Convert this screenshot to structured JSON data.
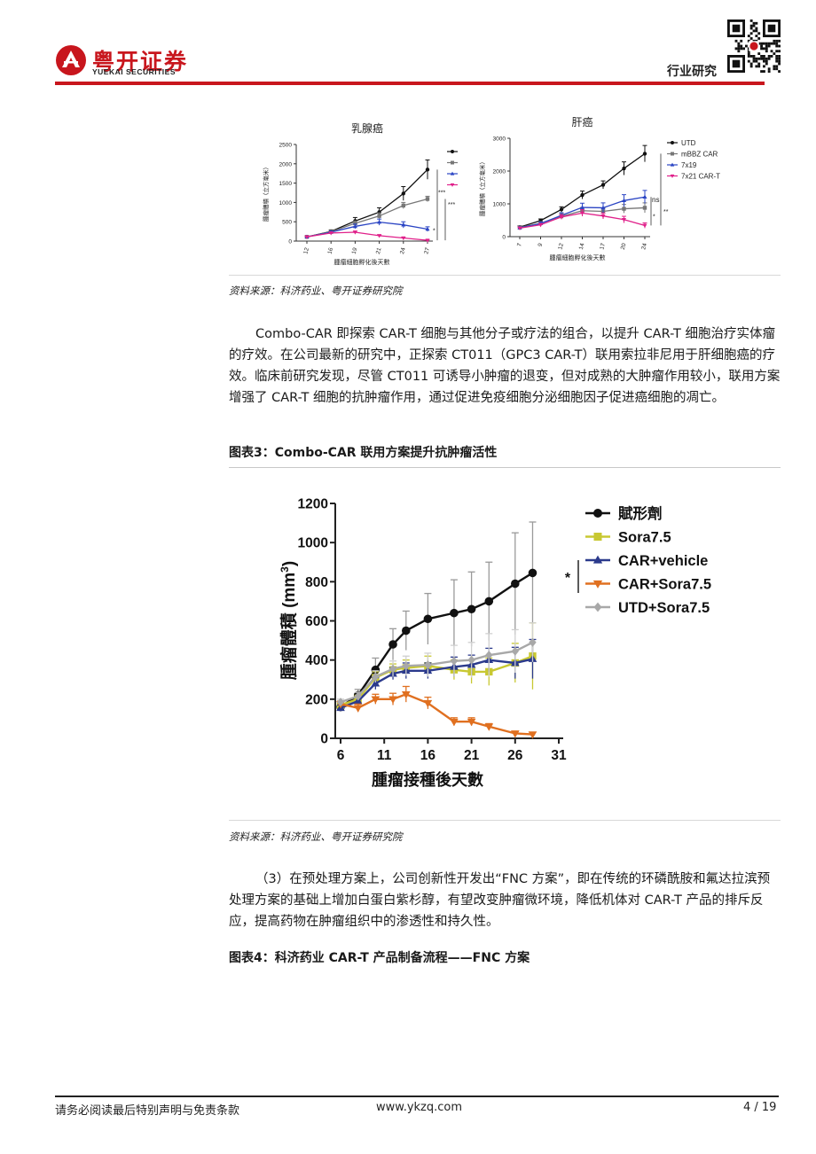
{
  "header": {
    "brand_cn": "粤开证券",
    "brand_en": "YUEKAI SECURITIES",
    "section": "行业研究",
    "accent_color": "#c8161d"
  },
  "figure2": {
    "left_panel": {
      "title": "乳腺癌",
      "ylabel": "腫瘤體積（立方毫米）",
      "xlabel": "腫瘤細胞孵化後天數",
      "sig_labels": [
        "***",
        "*",
        "***"
      ]
    },
    "right_panel": {
      "title": "肝癌",
      "ylabel": "腫瘤體積（立方毫米）",
      "xlabel": "腫瘤細胞孵化後天數",
      "legend": [
        "UTD",
        "mBBZ CAR",
        "7x19",
        "7x21 CAR-T"
      ],
      "sig_labels": [
        "ns",
        "*",
        "**"
      ]
    },
    "source": "资料来源：科济药业、粤开证券研究院"
  },
  "paragraph1": "Combo-CAR 即探索 CAR-T 细胞与其他分子或疗法的组合，以提升 CAR-T 细胞治疗实体瘤的疗效。在公司最新的研究中，正探索 CT011（GPC3 CAR-T）联用索拉非尼用于肝细胞癌的疗效。临床前研究发现，尽管 CT011 可诱导小肿瘤的退变，但对成熟的大肿瘤作用较小，联用方案增强了 CAR-T 细胞的抗肿瘤作用，通过促进免疫细胞分泌细胞因子促进癌细胞的凋亡。",
  "figure3": {
    "title": "图表3：Combo-CAR 联用方案提升抗肿瘤活性",
    "source": "资料来源：科济药业、粤开证券研究院",
    "sig_label": "*"
  },
  "paragraph2": "（3）在预处理方案上，公司创新性开发出“FNC 方案”，即在传统的环磷酰胺和氟达拉滨预处理方案的基础上增加白蛋白紫杉醇，有望改变肿瘤微环境，降低机体对 CAR-T 产品的排斥反应，提高药物在肿瘤组织中的渗透性和持久性。",
  "figure4": {
    "title": "图表4：科济药业 CAR-T 产品制备流程——FNC 方案"
  },
  "footer": {
    "disclaimer": "请务必阅读最后特别声明与免责条款",
    "website": "www.ykzq.com",
    "page": "4 / 19"
  },
  "chart_data": [
    {
      "type": "line",
      "title": "乳腺癌",
      "xlabel": "腫瘤細胞孵化後天數",
      "ylabel": "腫瘤體積（立方毫米）",
      "x": [
        12,
        16,
        19,
        21,
        24,
        27
      ],
      "ylim": [
        0,
        2500
      ],
      "yticks": [
        0,
        500,
        1000,
        1500,
        2000,
        2500
      ],
      "series": [
        {
          "name": "UTD",
          "color": "#111111",
          "marker": "circle",
          "values": [
            110,
            250,
            520,
            750,
            1230,
            1850
          ],
          "errors": [
            20,
            40,
            90,
            110,
            180,
            250
          ]
        },
        {
          "name": "mBBZ CAR",
          "color": "#777777",
          "marker": "square",
          "values": [
            110,
            240,
            460,
            650,
            920,
            1090
          ],
          "errors": [
            20,
            30,
            60,
            80,
            80,
            70
          ]
        },
        {
          "name": "7x19",
          "color": "#2b45c4",
          "marker": "triangle",
          "values": [
            110,
            230,
            380,
            490,
            420,
            310
          ],
          "errors": [
            20,
            30,
            60,
            80,
            80,
            60
          ]
        },
        {
          "name": "7x21 CAR-T",
          "color": "#e0208a",
          "marker": "triangle-down",
          "values": [
            110,
            210,
            230,
            140,
            80,
            20
          ],
          "errors": [
            15,
            20,
            30,
            20,
            15,
            10
          ]
        }
      ]
    },
    {
      "type": "line",
      "title": "肝癌",
      "xlabel": "腫瘤細胞孵化後天數",
      "ylabel": "腫瘤體積（立方毫米）",
      "x": [
        7,
        9,
        12,
        14,
        17,
        20,
        24
      ],
      "ylim": [
        0,
        3000
      ],
      "yticks": [
        0,
        1000,
        2000,
        3000
      ],
      "series": [
        {
          "name": "UTD",
          "color": "#111111",
          "marker": "circle",
          "values": [
            290,
            490,
            830,
            1270,
            1580,
            2080,
            2530
          ],
          "errors": [
            40,
            50,
            80,
            120,
            120,
            200,
            250
          ]
        },
        {
          "name": "mBBZ CAR",
          "color": "#777777",
          "marker": "square",
          "values": [
            280,
            410,
            620,
            790,
            770,
            850,
            880
          ],
          "errors": [
            30,
            50,
            80,
            100,
            100,
            130,
            150
          ]
        },
        {
          "name": "7x19",
          "color": "#2b45c4",
          "marker": "triangle",
          "values": [
            270,
            400,
            650,
            890,
            880,
            1100,
            1210
          ],
          "errors": [
            30,
            50,
            80,
            130,
            150,
            180,
            200
          ]
        },
        {
          "name": "7x21 CAR-T",
          "color": "#e0208a",
          "marker": "triangle-down",
          "values": [
            260,
            360,
            600,
            720,
            630,
            520,
            340
          ],
          "errors": [
            30,
            40,
            70,
            100,
            90,
            100,
            80
          ]
        }
      ]
    },
    {
      "type": "line",
      "title": "图表3：Combo-CAR 联用方案提升抗肿瘤活性",
      "xlabel": "腫瘤接種後天數",
      "ylabel": "腫瘤體積 (mm3)",
      "ylabel_main": "腫瘤體積 (mm",
      "ylabel_sup": "3",
      "ylabel_close": ")",
      "xlim": [
        6,
        31
      ],
      "xticks": [
        6,
        11,
        16,
        21,
        26,
        31
      ],
      "ylim": [
        0,
        1200
      ],
      "yticks": [
        0,
        200,
        400,
        600,
        800,
        1000,
        1200
      ],
      "x": [
        6,
        8,
        10,
        12,
        13.5,
        16,
        19,
        21,
        23,
        26,
        28
      ],
      "legend_position": "top-right",
      "series": [
        {
          "name": "賦形劑",
          "color": "#111111",
          "marker": "circle",
          "values": [
            160,
            220,
            350,
            480,
            550,
            610,
            640,
            660,
            700,
            790,
            845
          ],
          "errors": [
            20,
            30,
            60,
            80,
            100,
            130,
            170,
            190,
            200,
            260,
            260
          ]
        },
        {
          "name": "Sora7.5",
          "color": "#c8c832",
          "marker": "square",
          "values": [
            170,
            200,
            310,
            350,
            360,
            370,
            350,
            340,
            340,
            385,
            420
          ],
          "errors": [
            15,
            20,
            30,
            30,
            40,
            50,
            50,
            60,
            70,
            100,
            170
          ]
        },
        {
          "name": "CAR+vehicle",
          "color": "#2b3a8c",
          "marker": "triangle",
          "values": [
            155,
            190,
            280,
            330,
            345,
            345,
            365,
            375,
            400,
            385,
            405
          ],
          "errors": [
            15,
            20,
            30,
            30,
            40,
            40,
            50,
            50,
            60,
            80,
            100
          ]
        },
        {
          "name": "CAR+Sora7.5",
          "color": "#e07020",
          "marker": "triangle-down",
          "values": [
            175,
            155,
            200,
            200,
            225,
            180,
            85,
            85,
            60,
            25,
            20
          ],
          "errors": [
            15,
            20,
            25,
            30,
            40,
            30,
            20,
            20,
            15,
            10,
            10
          ]
        },
        {
          "name": "UTD+Sora7.5",
          "color": "#a8a8a8",
          "marker": "diamond",
          "values": [
            185,
            215,
            315,
            355,
            370,
            375,
            395,
            400,
            425,
            445,
            490
          ],
          "errors": [
            15,
            20,
            30,
            40,
            50,
            60,
            80,
            90,
            110,
            110,
            100
          ]
        }
      ]
    }
  ]
}
